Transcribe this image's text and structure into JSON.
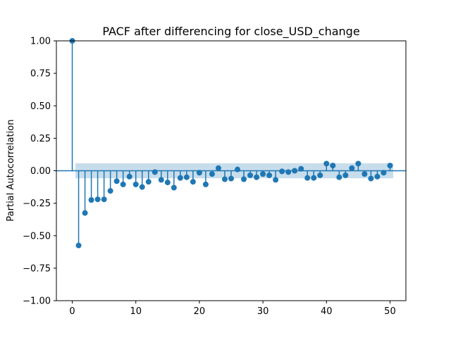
{
  "chart_data": {
    "type": "stem",
    "title": "PACF after differencing for close_USD_change",
    "xlabel": "",
    "ylabel": "Partial Autocorrelation",
    "xlim": [
      -2.5,
      52.5
    ],
    "ylim": [
      -1.0,
      1.0
    ],
    "xticks": [
      0,
      10,
      20,
      30,
      40,
      50
    ],
    "xtick_labels": [
      "0",
      "10",
      "20",
      "30",
      "40",
      "50"
    ],
    "yticks": [
      -1.0,
      -0.75,
      -0.5,
      -0.25,
      0.0,
      0.25,
      0.5,
      0.75,
      1.0
    ],
    "ytick_labels": [
      "−1.00",
      "−0.75",
      "−0.50",
      "−0.25",
      "0.00",
      "0.25",
      "0.50",
      "0.75",
      "1.00"
    ],
    "confidence_band": {
      "from_lag": 0.5,
      "to_lag": 50.5,
      "lower": -0.058,
      "upper": 0.058
    },
    "lags": [
      0,
      1,
      2,
      3,
      4,
      5,
      6,
      7,
      8,
      9,
      10,
      11,
      12,
      13,
      14,
      15,
      16,
      17,
      18,
      19,
      20,
      21,
      22,
      23,
      24,
      25,
      26,
      27,
      28,
      29,
      30,
      31,
      32,
      33,
      34,
      35,
      36,
      37,
      38,
      39,
      40,
      41,
      42,
      43,
      44,
      45,
      46,
      47,
      48,
      49,
      50
    ],
    "values": [
      1.0,
      -0.575,
      -0.325,
      -0.225,
      -0.22,
      -0.22,
      -0.155,
      -0.08,
      -0.105,
      -0.045,
      -0.105,
      -0.125,
      -0.085,
      -0.01,
      -0.07,
      -0.09,
      -0.13,
      -0.055,
      -0.05,
      -0.085,
      -0.015,
      -0.105,
      -0.025,
      0.02,
      -0.065,
      -0.06,
      0.01,
      -0.065,
      -0.035,
      -0.05,
      -0.025,
      -0.035,
      -0.07,
      -0.005,
      -0.01,
      0.0,
      0.015,
      -0.055,
      -0.055,
      -0.035,
      0.055,
      0.04,
      -0.05,
      -0.035,
      0.02,
      0.055,
      -0.025,
      -0.06,
      -0.045,
      -0.015,
      0.04
    ],
    "colors": {
      "stem": "#1f77b4",
      "band": "#1f77b4",
      "baseline": "#1f77b4"
    },
    "grid": false,
    "legend": "none"
  }
}
